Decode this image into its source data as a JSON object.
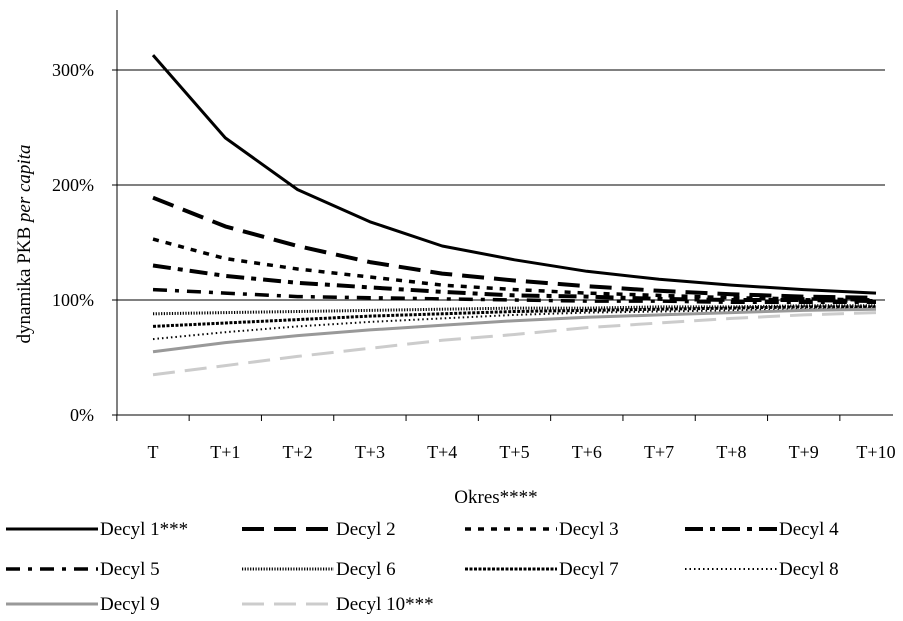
{
  "chart_data": {
    "type": "line",
    "xlabel": "Okres****",
    "ylabel_main": "dynamika PKB",
    "ylabel_italic": "per capita",
    "categories": [
      "T",
      "T+1",
      "T+2",
      "T+3",
      "T+4",
      "T+5",
      "T+6",
      "T+7",
      "T+8",
      "T+9",
      "T+10"
    ],
    "y_ticks": [
      0,
      100,
      200,
      300
    ],
    "y_tick_labels": [
      "0%",
      "100%",
      "200%",
      "300%"
    ],
    "ylim": [
      0,
      350
    ],
    "grid": "horizontal",
    "legend_position": "bottom",
    "series": [
      {
        "name": "Decyl 1***",
        "color": "#000000",
        "values": [
          313,
          241,
          196,
          168,
          147,
          135,
          125,
          118,
          113,
          109,
          106
        ]
      },
      {
        "name": "Decyl 2",
        "color": "#000000",
        "values": [
          189,
          164,
          147,
          133,
          123,
          117,
          112,
          108,
          105,
          103,
          102
        ]
      },
      {
        "name": "Decyl 3",
        "color": "#000000",
        "values": [
          153,
          136,
          127,
          120,
          113,
          109,
          106,
          104,
          102,
          101,
          100
        ]
      },
      {
        "name": "Decyl 4",
        "color": "#000000",
        "values": [
          130,
          121,
          115,
          111,
          107,
          104,
          103,
          101,
          100,
          100,
          99
        ]
      },
      {
        "name": "Decyl 5",
        "color": "#000000",
        "values": [
          109,
          106,
          103,
          102,
          101,
          100,
          99,
          99,
          98,
          98,
          98
        ]
      },
      {
        "name": "Decyl 6",
        "color": "#000000",
        "values": [
          88,
          89,
          90,
          91,
          92,
          93,
          93,
          94,
          94,
          95,
          95
        ]
      },
      {
        "name": "Decyl 7",
        "color": "#000000",
        "values": [
          77,
          80,
          83,
          86,
          88,
          90,
          91,
          92,
          93,
          94,
          94
        ]
      },
      {
        "name": "Decyl 8",
        "color": "#000000",
        "values": [
          66,
          72,
          77,
          81,
          84,
          87,
          89,
          90,
          91,
          92,
          93
        ]
      },
      {
        "name": "Decyl 9",
        "color": "#999999",
        "values": [
          55,
          63,
          69,
          74,
          78,
          82,
          85,
          87,
          89,
          91,
          92
        ]
      },
      {
        "name": "Decyl 10***",
        "color": "#cccccc",
        "values": [
          35,
          43,
          51,
          58,
          65,
          70,
          76,
          80,
          84,
          87,
          89
        ]
      }
    ]
  }
}
